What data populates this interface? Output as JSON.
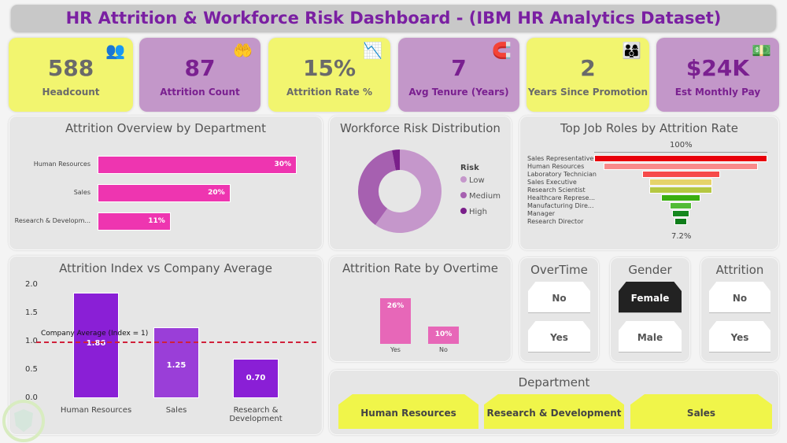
{
  "title": "HR Attrition & Workforce Risk Dashboard - (IBM HR Analytics Dataset)",
  "kpis": [
    {
      "value": "588",
      "label": "Headcount",
      "icon": "people-search-icon"
    },
    {
      "value": "87",
      "label": "Attrition Count",
      "icon": "hand-person-icon"
    },
    {
      "value": "15%",
      "label": "Attrition Rate %",
      "icon": "declining-chart-icon"
    },
    {
      "value": "7",
      "label": "Avg Tenure (Years)",
      "icon": "magnet-people-icon"
    },
    {
      "value": "2",
      "label": "Years Since Promotion",
      "icon": "team-promotion-icon"
    },
    {
      "value": "$24K",
      "label": "Est Monthly Pay",
      "icon": "money-hand-icon"
    }
  ],
  "colors": {
    "yellow": "#f2f56f",
    "purple": "#c397c9",
    "title": "#7a1fa2",
    "dept_bar": "#ee35b0",
    "index_bar": "#8a1fd6",
    "overtime_bar": "#e767b8",
    "avg_line": "#d0213a"
  },
  "chart_data": [
    {
      "type": "bar",
      "orientation": "horizontal",
      "title": "Attrition Overview by Department",
      "categories": [
        "Human Resources",
        "Sales",
        "Research & Developm..."
      ],
      "values": [
        30,
        20,
        11
      ],
      "labels": [
        "30%",
        "20%",
        "11%"
      ]
    },
    {
      "type": "pie",
      "title": "Workforce Risk Distribution",
      "legend_title": "Risk",
      "legend_position": "right",
      "categories": [
        "Low",
        "Medium",
        "High"
      ],
      "values": [
        60,
        37,
        3
      ],
      "colors": [
        "#c597cb",
        "#a660b0",
        "#7a1f8a"
      ]
    },
    {
      "type": "funnel",
      "title": "Top Job Roles by Attrition Rate",
      "categories": [
        "Sales Representative",
        "Human Resources",
        "Laboratory Technician",
        "Sales Executive",
        "Research Scientist",
        "Healthcare Represe...",
        "Manufacturing Dire...",
        "Manager",
        "Research Director"
      ],
      "values": [
        100,
        89,
        45,
        36,
        36,
        23,
        13,
        10,
        7.2
      ],
      "top_label": "100%",
      "bottom_label": "7.2%",
      "colors": [
        "#e8000b",
        "#f98a8a",
        "#f64a4a",
        "#e6d36a",
        "#b5c742",
        "#3aae10",
        "#52bb36",
        "#15881f",
        "#0f7d1a"
      ]
    },
    {
      "type": "bar",
      "title": "Attrition Index vs Company Average",
      "categories": [
        "Human Resources",
        "Sales",
        "Research & Development"
      ],
      "values": [
        1.86,
        1.25,
        0.7
      ],
      "labels": [
        "1.86",
        "1.25",
        "0.70"
      ],
      "yticks": [
        "0.0",
        "0.5",
        "1.0",
        "1.5",
        "2.0"
      ],
      "ylim": [
        0,
        2
      ],
      "reference_line": {
        "value": 1,
        "label": "Company Average (Index = 1)"
      }
    },
    {
      "type": "bar",
      "title": "Attrition Rate by Overtime",
      "categories": [
        "Yes",
        "No"
      ],
      "values": [
        26,
        10
      ],
      "labels": [
        "26%",
        "10%"
      ]
    }
  ],
  "slicers": [
    {
      "title": "OverTime",
      "options": [
        "No",
        "Yes"
      ],
      "selected": null
    },
    {
      "title": "Gender",
      "options": [
        "Female",
        "Male"
      ],
      "selected": "Female"
    },
    {
      "title": "Attrition",
      "options": [
        "No",
        "Yes"
      ],
      "selected": null
    }
  ],
  "department_slicer": {
    "title": "Department",
    "options": [
      "Human Resources",
      "Research & Development",
      "Sales"
    ]
  }
}
